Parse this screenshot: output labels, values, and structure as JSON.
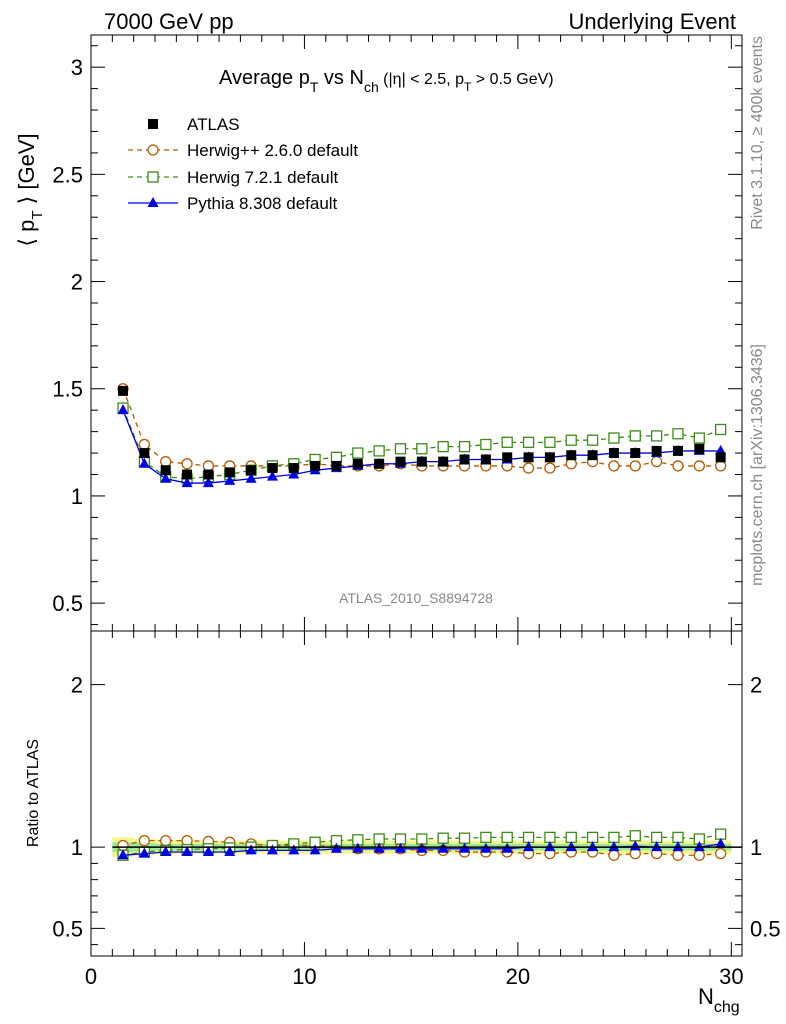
{
  "header": {
    "left": "7000 GeV pp",
    "right": "Underlying Event"
  },
  "side_labels": {
    "rivet": "Rivet 3.1.10, ≥ 400k events",
    "mcplots": "mcplots.cern.ch [arXiv:1306.3436]"
  },
  "analysis_label": "ATLAS_2010_S8894728",
  "chart_data": {
    "type": "line",
    "title": {
      "part1": "Average p",
      "sub1": "T",
      "part2": " vs N",
      "sub2": "ch",
      "part3": " (|η| < 2.5, p",
      "sub3": "T",
      "part4": " > 0.5 GeV)"
    },
    "ylabel": {
      "pre": "⟨ p",
      "sub": "T",
      "post": " ⟩ [GeV]"
    },
    "ratio_ylabel": "Ratio to ATLAS",
    "xlabel": {
      "main": "N",
      "sub": "chg"
    },
    "xlim": [
      0,
      30.5
    ],
    "ylim": [
      0.37,
      3.15
    ],
    "ratio_ylim": [
      0.33,
      2.33
    ],
    "xticks": [
      0,
      10,
      20,
      30
    ],
    "yticks": [
      0.5,
      1,
      1.5,
      2,
      2.5,
      3
    ],
    "ratio_yticks": [
      0.5,
      1,
      2
    ],
    "legend_position": "top-left",
    "x": [
      1.5,
      2.5,
      3.5,
      4.5,
      5.5,
      6.5,
      7.5,
      8.5,
      9.5,
      10.5,
      11.5,
      12.5,
      13.5,
      14.5,
      15.5,
      16.5,
      17.5,
      18.5,
      19.5,
      20.5,
      21.5,
      22.5,
      23.5,
      24.5,
      25.5,
      26.5,
      27.5,
      28.5,
      29.5
    ],
    "series": [
      {
        "name": "ATLAS",
        "color": "#000000",
        "marker": "filled-square",
        "line": "none",
        "values": [
          1.49,
          1.2,
          1.12,
          1.1,
          1.1,
          1.11,
          1.12,
          1.13,
          1.13,
          1.14,
          1.14,
          1.15,
          1.15,
          1.16,
          1.16,
          1.16,
          1.17,
          1.17,
          1.18,
          1.18,
          1.18,
          1.19,
          1.19,
          1.2,
          1.2,
          1.21,
          1.21,
          1.22,
          1.18
        ],
        "ratio": [
          1,
          1,
          1,
          1,
          1,
          1,
          1,
          1,
          1,
          1,
          1,
          1,
          1,
          1,
          1,
          1,
          1,
          1,
          1,
          1,
          1,
          1,
          1,
          1,
          1,
          1,
          1,
          1,
          1
        ],
        "band_yellow": [
          0.06,
          0.05,
          0.045,
          0.04,
          0.04,
          0.04,
          0.04,
          0.04,
          0.04,
          0.04,
          0.04,
          0.04,
          0.04,
          0.04,
          0.04,
          0.04,
          0.04,
          0.04,
          0.04,
          0.04,
          0.04,
          0.04,
          0.04,
          0.04,
          0.04,
          0.04,
          0.04,
          0.04,
          0.04
        ],
        "band_green": [
          0.03,
          0.025,
          0.02,
          0.02,
          0.02,
          0.02,
          0.02,
          0.02,
          0.02,
          0.02,
          0.02,
          0.02,
          0.02,
          0.02,
          0.02,
          0.02,
          0.02,
          0.02,
          0.02,
          0.02,
          0.02,
          0.02,
          0.02,
          0.02,
          0.02,
          0.02,
          0.02,
          0.02,
          0.02
        ]
      },
      {
        "name": "Herwig++ 2.6.0 default",
        "color": "#b35a00",
        "marker": "open-circle",
        "line": "dashed",
        "values": [
          1.5,
          1.24,
          1.16,
          1.15,
          1.14,
          1.14,
          1.14,
          1.14,
          1.14,
          1.15,
          1.14,
          1.14,
          1.14,
          1.15,
          1.14,
          1.14,
          1.14,
          1.14,
          1.14,
          1.13,
          1.13,
          1.15,
          1.16,
          1.14,
          1.14,
          1.16,
          1.14,
          1.14,
          1.14
        ],
        "ratio": [
          1.01,
          1.04,
          1.04,
          1.04,
          1.035,
          1.03,
          1.02,
          1.01,
          1.01,
          1.01,
          1.0,
          0.99,
          0.99,
          0.99,
          0.98,
          0.98,
          0.97,
          0.97,
          0.97,
          0.96,
          0.96,
          0.97,
          0.97,
          0.95,
          0.96,
          0.96,
          0.95,
          0.95,
          0.96
        ]
      },
      {
        "name": "Herwig 7.2.1 default",
        "color": "#3c8c14",
        "marker": "open-square",
        "line": "dashed",
        "values": [
          1.41,
          1.16,
          1.09,
          1.08,
          1.09,
          1.1,
          1.12,
          1.14,
          1.15,
          1.17,
          1.18,
          1.2,
          1.21,
          1.22,
          1.22,
          1.23,
          1.23,
          1.24,
          1.25,
          1.25,
          1.25,
          1.26,
          1.26,
          1.27,
          1.28,
          1.28,
          1.29,
          1.27,
          1.31
        ],
        "ratio": [
          0.95,
          0.97,
          0.98,
          0.985,
          0.99,
          0.995,
          1.0,
          1.01,
          1.02,
          1.03,
          1.04,
          1.045,
          1.05,
          1.05,
          1.05,
          1.055,
          1.055,
          1.06,
          1.06,
          1.06,
          1.06,
          1.06,
          1.06,
          1.06,
          1.07,
          1.06,
          1.06,
          1.05,
          1.08
        ]
      },
      {
        "name": "Pythia 8.308 default",
        "color": "#0000e6",
        "marker": "filled-triangle",
        "line": "solid",
        "values": [
          1.4,
          1.15,
          1.08,
          1.06,
          1.06,
          1.07,
          1.08,
          1.09,
          1.1,
          1.12,
          1.13,
          1.14,
          1.15,
          1.15,
          1.16,
          1.16,
          1.17,
          1.17,
          1.17,
          1.18,
          1.18,
          1.19,
          1.19,
          1.2,
          1.2,
          1.2,
          1.21,
          1.21,
          1.21
        ],
        "ratio": [
          0.95,
          0.96,
          0.97,
          0.97,
          0.97,
          0.97,
          0.98,
          0.98,
          0.98,
          0.98,
          0.99,
          0.99,
          0.99,
          0.99,
          0.99,
          0.99,
          0.99,
          0.99,
          0.99,
          1.0,
          1.0,
          1.0,
          1.0,
          1.0,
          1.005,
          1.0,
          1.0,
          1.0,
          1.02
        ]
      }
    ]
  }
}
